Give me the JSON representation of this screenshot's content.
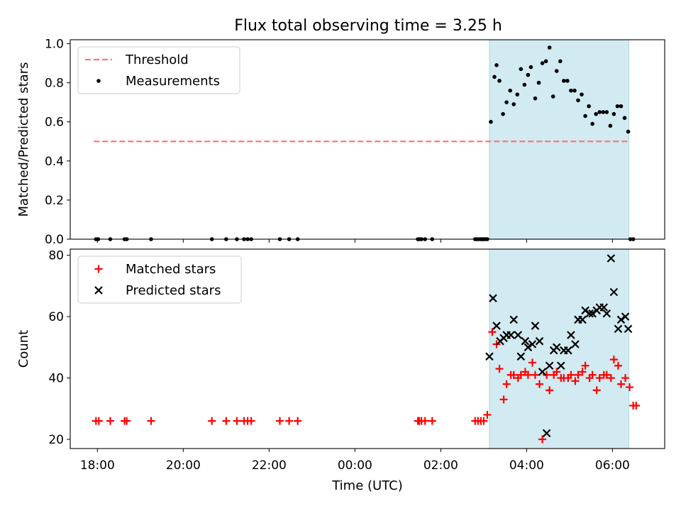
{
  "title": "Flux total observing time = 3.25 h",
  "colors": {
    "threshold": "#ff7777",
    "measurement": "#000000",
    "matched": "#ff0000",
    "predicted": "#000000",
    "highlight": "#add8e6"
  },
  "chart_data": [
    {
      "type": "scatter",
      "id": "ratio",
      "ylabel": "Matched/Predicted stars",
      "xlabel": "",
      "ylim": [
        0,
        1.02
      ],
      "yticks": [
        0.0,
        0.2,
        0.4,
        0.6,
        0.8,
        1.0
      ],
      "ytick_labels": [
        "0.0",
        "0.2",
        "0.4",
        "0.6",
        "0.8",
        "1.0"
      ],
      "grid": false,
      "legend_position": "top-left",
      "threshold": {
        "name": "Threshold",
        "value": 0.5,
        "x_start": "17:55",
        "x_end": "06:25"
      },
      "highlight_span": [
        "03:08",
        "06:23"
      ],
      "series": [
        {
          "name": "Measurements",
          "x": [
            "17:58",
            "18:01",
            "18:18",
            "18:38",
            "18:41",
            "19:15",
            "20:40",
            "21:00",
            "21:15",
            "21:25",
            "21:30",
            "21:35",
            "22:15",
            "22:28",
            "22:40",
            "01:28",
            "01:30",
            "01:33",
            "01:38",
            "01:48",
            "02:48",
            "02:50",
            "02:53",
            "02:56",
            "02:58",
            "03:00",
            "03:02",
            "03:05",
            "03:10",
            "03:15",
            "03:18",
            "03:22",
            "03:27",
            "03:32",
            "03:37",
            "03:42",
            "03:47",
            "03:52",
            "03:57",
            "04:02",
            "04:06",
            "04:12",
            "04:17",
            "04:22",
            "04:27",
            "04:32",
            "04:37",
            "04:42",
            "04:47",
            "04:52",
            "04:57",
            "05:02",
            "05:07",
            "05:12",
            "05:17",
            "05:22",
            "05:27",
            "05:32",
            "05:37",
            "05:42",
            "05:47",
            "05:52",
            "05:57",
            "06:02",
            "06:07",
            "06:12",
            "06:17",
            "06:22",
            "06:25",
            "06:29"
          ],
          "y": [
            0,
            0,
            0,
            0,
            0,
            0,
            0,
            0,
            0,
            0,
            0,
            0,
            0,
            0,
            0,
            0,
            0,
            0,
            0,
            0,
            0,
            0,
            0,
            0,
            0,
            0,
            0,
            0,
            0.6,
            0.83,
            0.89,
            0.81,
            0.64,
            0.7,
            0.76,
            0.69,
            0.74,
            0.87,
            0.79,
            0.84,
            0.88,
            0.72,
            0.8,
            0.9,
            0.91,
            0.98,
            0.73,
            0.86,
            0.91,
            0.81,
            0.81,
            0.76,
            0.76,
            0.71,
            0.74,
            0.63,
            0.68,
            0.59,
            0.64,
            0.65,
            0.65,
            0.65,
            0.58,
            0.64,
            0.68,
            0.68,
            0.62,
            0.55,
            0.0,
            0.0
          ]
        }
      ]
    },
    {
      "type": "scatter",
      "id": "counts",
      "ylabel": "Count",
      "xlabel": "Time (UTC)",
      "ylim": [
        17,
        82
      ],
      "yticks": [
        20,
        40,
        60,
        80
      ],
      "ytick_labels": [
        "20",
        "40",
        "60",
        "80"
      ],
      "xticks": [
        "18:00",
        "20:00",
        "22:00",
        "00:00",
        "02:00",
        "04:00",
        "06:00"
      ],
      "xlim": [
        "17:22",
        "07:13"
      ],
      "grid": false,
      "legend_position": "top-left",
      "highlight_span": [
        "03:08",
        "06:23"
      ],
      "series": [
        {
          "name": "Matched stars",
          "marker": "+",
          "x": [
            "17:58",
            "18:02",
            "18:18",
            "18:38",
            "18:41",
            "19:15",
            "20:40",
            "21:00",
            "21:15",
            "21:25",
            "21:30",
            "21:35",
            "22:15",
            "22:28",
            "22:40",
            "01:28",
            "01:30",
            "01:33",
            "01:38",
            "01:48",
            "02:48",
            "02:52",
            "02:56",
            "03:00",
            "03:05",
            "03:12",
            "03:18",
            "03:22",
            "03:28",
            "03:32",
            "03:38",
            "03:42",
            "03:48",
            "03:52",
            "03:58",
            "04:02",
            "04:08",
            "04:12",
            "04:18",
            "04:22",
            "04:28",
            "04:32",
            "04:38",
            "04:42",
            "04:48",
            "04:52",
            "04:58",
            "05:02",
            "05:08",
            "05:12",
            "05:18",
            "05:22",
            "05:28",
            "05:32",
            "05:38",
            "05:42",
            "05:48",
            "05:52",
            "05:58",
            "06:02",
            "06:08",
            "06:12",
            "06:18",
            "06:24",
            "06:29",
            "06:33"
          ],
          "y": [
            26,
            26,
            26,
            26,
            26,
            26,
            26,
            26,
            26,
            26,
            26,
            26,
            26,
            26,
            26,
            26,
            26,
            26,
            26,
            26,
            26,
            26,
            26,
            26,
            28,
            55,
            51,
            43,
            33,
            38,
            41,
            41,
            40,
            41,
            42,
            41,
            45,
            41,
            38,
            20,
            41,
            36,
            41,
            42,
            40,
            40,
            40,
            41,
            39,
            41,
            42,
            44,
            40,
            41,
            36,
            40,
            41,
            41,
            40,
            46,
            44,
            38,
            40,
            37,
            31,
            31
          ]
        },
        {
          "name": "Predicted stars",
          "marker": "x",
          "x": [
            "03:08",
            "03:13",
            "03:18",
            "03:23",
            "03:28",
            "03:32",
            "03:38",
            "03:42",
            "03:48",
            "03:52",
            "03:58",
            "04:02",
            "04:08",
            "04:12",
            "04:18",
            "04:22",
            "04:28",
            "04:32",
            "04:38",
            "04:42",
            "04:48",
            "04:52",
            "04:58",
            "05:02",
            "05:08",
            "05:12",
            "05:18",
            "05:22",
            "05:28",
            "05:32",
            "05:38",
            "05:42",
            "05:48",
            "05:52",
            "05:58",
            "06:02",
            "06:08",
            "06:12",
            "06:18",
            "06:22"
          ],
          "y": [
            47,
            66,
            57,
            52,
            53,
            54,
            54,
            59,
            54,
            47,
            52,
            50,
            51,
            57,
            52,
            42,
            22,
            44,
            49,
            50,
            44,
            49,
            49,
            54,
            51,
            59,
            59,
            62,
            61,
            61,
            62,
            63,
            63,
            61,
            79,
            68,
            56,
            59,
            60,
            56
          ]
        }
      ]
    }
  ]
}
